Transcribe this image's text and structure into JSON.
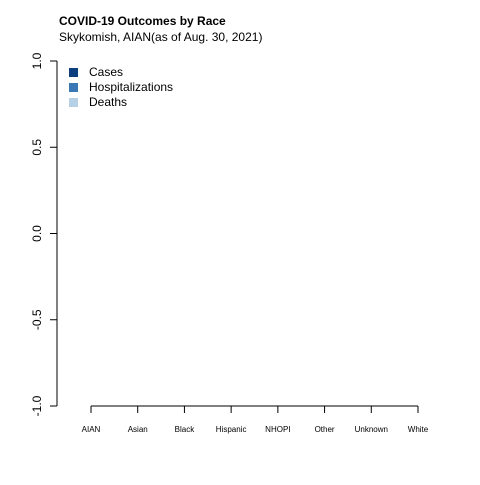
{
  "chart_data": {
    "type": "bar",
    "title": "COVID-19 Outcomes by Race",
    "subtitle": "Skykomish, AIAN(as of Aug. 30, 2021)",
    "categories": [
      "AIAN",
      "Asian",
      "Black",
      "Hispanic",
      "NHOPI",
      "Other",
      "Unknown",
      "White"
    ],
    "series": [
      {
        "name": "Cases",
        "color": "#0d3f7e",
        "values": [
          null,
          null,
          null,
          null,
          null,
          null,
          null,
          null
        ]
      },
      {
        "name": "Hospitalizations",
        "color": "#3a78b5",
        "values": [
          null,
          null,
          null,
          null,
          null,
          null,
          null,
          null
        ]
      },
      {
        "name": "Deaths",
        "color": "#b5cfe4",
        "values": [
          null,
          null,
          null,
          null,
          null,
          null,
          null,
          null
        ]
      }
    ],
    "ylim": [
      -1,
      1
    ],
    "yticks": [
      {
        "value": -1,
        "label": "-1.0"
      },
      -0.5,
      {
        "value": 0,
        "label": "0.0"
      },
      0.5,
      {
        "value": 1,
        "label": "1.0"
      }
    ],
    "legend": "top-left",
    "grid": false
  }
}
